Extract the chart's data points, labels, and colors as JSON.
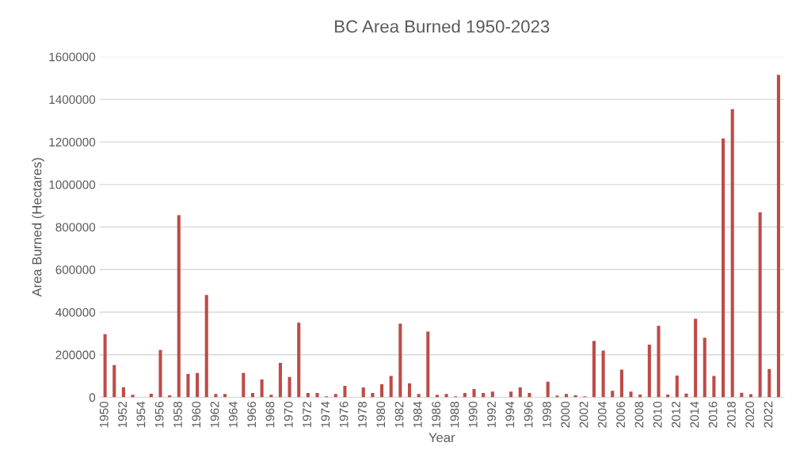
{
  "chart_data": {
    "type": "bar",
    "title": "BC Area Burned 1950-2023",
    "xlabel": "Year",
    "ylabel": "Area Burned (Hectares)",
    "categories": [
      "1950",
      null,
      "1952",
      null,
      "1954",
      null,
      "1956",
      null,
      "1958",
      null,
      "1960",
      null,
      "1962",
      null,
      "1964",
      null,
      "1966",
      null,
      "1968",
      null,
      "1970",
      null,
      "1972",
      null,
      "1974",
      null,
      "1976",
      null,
      "1978",
      null,
      "1980",
      null,
      "1982",
      null,
      "1984",
      null,
      "1986",
      null,
      "1988",
      null,
      "1990",
      null,
      "1992",
      null,
      "1994",
      null,
      "1996",
      null,
      "1998",
      null,
      "2000",
      null,
      "2002",
      null,
      "2004",
      null,
      "2006",
      null,
      "2008",
      null,
      "2010",
      null,
      "2012",
      null,
      "2014",
      null,
      "2016",
      null,
      "2018",
      null,
      "2020",
      null,
      "2022",
      null
    ],
    "values": [
      297000,
      152000,
      47000,
      12000,
      null,
      17000,
      222000,
      9000,
      856000,
      110000,
      114000,
      481000,
      16000,
      16000,
      null,
      114000,
      20000,
      84000,
      12000,
      162000,
      96000,
      351000,
      20000,
      20000,
      5000,
      16000,
      54000,
      null,
      46000,
      20000,
      61000,
      100000,
      346000,
      66000,
      16000,
      309000,
      12000,
      16000,
      5000,
      20000,
      39000,
      20000,
      27000,
      null,
      27000,
      46000,
      20000,
      null,
      73000,
      8000,
      16000,
      10000,
      5000,
      265000,
      220000,
      31000,
      130000,
      27000,
      13000,
      247000,
      336000,
      13000,
      102000,
      18000,
      369000,
      280000,
      100000,
      1216000,
      1354000,
      21000,
      15000,
      869000,
      133000,
      1515000
    ],
    "color": "#be4b48",
    "ylim": [
      0,
      1600000
    ],
    "yticks": [
      0,
      200000,
      400000,
      600000,
      800000,
      1000000,
      1200000,
      1400000,
      1600000
    ],
    "grid": "y",
    "legend": false
  }
}
